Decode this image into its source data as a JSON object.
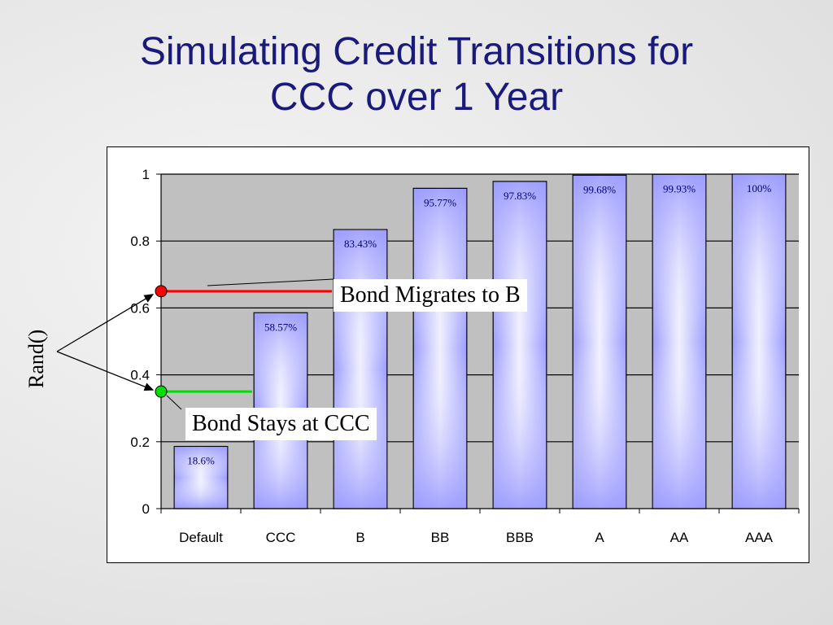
{
  "slide": {
    "title_line1": "Simulating Credit Transitions for",
    "title_line2": "CCC over 1 Year",
    "rand_label": "Rand()",
    "callout_migrate": "Bond Migrates to B",
    "callout_stay": "Bond Stays at CCC"
  },
  "chart_data": {
    "type": "bar",
    "categories": [
      "Default",
      "CCC",
      "B",
      "BB",
      "BBB",
      "A",
      "AA",
      "AAA"
    ],
    "values": [
      0.186,
      0.5857,
      0.8343,
      0.9577,
      0.9783,
      0.9968,
      0.9993,
      1.0
    ],
    "data_labels": [
      "18.6%",
      "58.57%",
      "83.43%",
      "95.77%",
      "97.83%",
      "99.68%",
      "99.93%",
      "100%"
    ],
    "ylim": [
      0,
      1
    ],
    "yticks": [
      0,
      0.2,
      0.4,
      0.6,
      0.8,
      1
    ],
    "ytick_labels": [
      "0",
      "0.2",
      "0.4",
      "0.6",
      "0.8",
      "1"
    ],
    "grid": true,
    "markers": [
      {
        "name": "migrate",
        "value": 0.65,
        "color": "#ff0000"
      },
      {
        "name": "stay",
        "value": 0.35,
        "color": "#00dd00"
      }
    ],
    "colors": {
      "bar": "#9999ff",
      "bar_highlight": "#ffffff",
      "plot_bg": "#c0c0c0"
    }
  }
}
